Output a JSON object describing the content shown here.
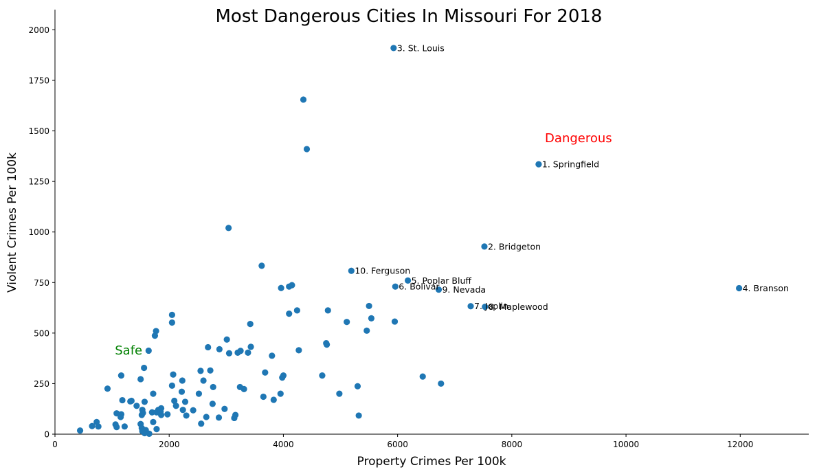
{
  "chart_data": {
    "type": "scatter",
    "title": "Most Dangerous Cities In Missouri For 2018",
    "xlabel": "Property Crimes Per 100k",
    "ylabel": "Violent Crimes Per 100k",
    "xlim": [
      0,
      13200
    ],
    "ylim": [
      0,
      2100
    ],
    "xticks": [
      0,
      2000,
      4000,
      6000,
      8000,
      10000,
      12000
    ],
    "yticks": [
      0,
      250,
      500,
      750,
      1000,
      1250,
      1500,
      1750,
      2000
    ],
    "grid": false,
    "marker_color": "#1f77b4",
    "labeled_points": [
      {
        "label": "3. St. Louis",
        "x": 5930,
        "y": 1910
      },
      {
        "label": "1. Springfield",
        "x": 8470,
        "y": 1335
      },
      {
        "label": "2. Bridgeton",
        "x": 7520,
        "y": 928
      },
      {
        "label": "10. Ferguson",
        "x": 5190,
        "y": 808
      },
      {
        "label": "5. Poplar Bluff",
        "x": 6180,
        "y": 760
      },
      {
        "label": "6. Bolivar",
        "x": 5960,
        "y": 730
      },
      {
        "label": "9. Nevada",
        "x": 6720,
        "y": 715
      },
      {
        "label": "4. Branson",
        "x": 11980,
        "y": 722
      },
      {
        "label": "7. Joplin",
        "x": 7280,
        "y": 633
      },
      {
        "label": "8. Maplewood",
        "x": 7530,
        "y": 630
      }
    ],
    "points": [
      [
        4350,
        1655
      ],
      [
        4410,
        1410
      ],
      [
        3040,
        1020
      ],
      [
        3620,
        833
      ],
      [
        3960,
        723
      ],
      [
        4100,
        730
      ],
      [
        4150,
        737
      ],
      [
        2050,
        590
      ],
      [
        2050,
        552
      ],
      [
        1770,
        510
      ],
      [
        1750,
        487
      ],
      [
        1640,
        413
      ],
      [
        3420,
        545
      ],
      [
        4100,
        596
      ],
      [
        4240,
        612
      ],
      [
        4780,
        612
      ],
      [
        5110,
        555
      ],
      [
        5460,
        512
      ],
      [
        5500,
        634
      ],
      [
        5540,
        573
      ],
      [
        5950,
        557
      ],
      [
        3010,
        468
      ],
      [
        3050,
        400
      ],
      [
        3200,
        403
      ],
      [
        3250,
        412
      ],
      [
        3380,
        403
      ],
      [
        3430,
        432
      ],
      [
        2680,
        430
      ],
      [
        2880,
        420
      ],
      [
        3800,
        388
      ],
      [
        4270,
        415
      ],
      [
        4750,
        450
      ],
      [
        4760,
        443
      ],
      [
        1160,
        290
      ],
      [
        1560,
        328
      ],
      [
        1500,
        272
      ],
      [
        920,
        225
      ],
      [
        2070,
        295
      ],
      [
        2230,
        265
      ],
      [
        2550,
        313
      ],
      [
        2600,
        265
      ],
      [
        2720,
        315
      ],
      [
        2050,
        240
      ],
      [
        2220,
        210
      ],
      [
        2770,
        233
      ],
      [
        3240,
        233
      ],
      [
        3310,
        223
      ],
      [
        3680,
        305
      ],
      [
        4000,
        290
      ],
      [
        3980,
        280
      ],
      [
        4680,
        290
      ],
      [
        5300,
        237
      ],
      [
        6440,
        285
      ],
      [
        6760,
        250
      ],
      [
        2520,
        200
      ],
      [
        1720,
        200
      ],
      [
        3650,
        185
      ],
      [
        3950,
        200
      ],
      [
        4980,
        200
      ],
      [
        1180,
        168
      ],
      [
        1320,
        162
      ],
      [
        1340,
        165
      ],
      [
        1570,
        160
      ],
      [
        2090,
        165
      ],
      [
        2280,
        160
      ],
      [
        2760,
        150
      ],
      [
        3830,
        170
      ],
      [
        1430,
        140
      ],
      [
        1530,
        120
      ],
      [
        1860,
        128
      ],
      [
        1810,
        120
      ],
      [
        1780,
        108
      ],
      [
        2120,
        140
      ],
      [
        2240,
        120
      ],
      [
        2420,
        118
      ],
      [
        1080,
        103
      ],
      [
        1160,
        98
      ],
      [
        1150,
        85
      ],
      [
        1520,
        95
      ],
      [
        1540,
        105
      ],
      [
        1700,
        108
      ],
      [
        1850,
        112
      ],
      [
        1860,
        95
      ],
      [
        1970,
        98
      ],
      [
        2300,
        92
      ],
      [
        2650,
        85
      ],
      [
        2870,
        82
      ],
      [
        2970,
        125
      ],
      [
        3160,
        95
      ],
      [
        3140,
        80
      ],
      [
        5320,
        92
      ],
      [
        730,
        60
      ],
      [
        650,
        40
      ],
      [
        760,
        38
      ],
      [
        1060,
        48
      ],
      [
        1080,
        35
      ],
      [
        1220,
        38
      ],
      [
        1500,
        50
      ],
      [
        1520,
        30
      ],
      [
        1530,
        15
      ],
      [
        1570,
        5
      ],
      [
        1590,
        20
      ],
      [
        1650,
        2
      ],
      [
        1720,
        60
      ],
      [
        1780,
        25
      ],
      [
        2560,
        52
      ],
      [
        440,
        18
      ]
    ],
    "annotations": [
      {
        "text": "Dangerous",
        "x": 8580,
        "y": 1445,
        "color": "#ff0000"
      },
      {
        "text": "Safe",
        "x": 1050,
        "y": 395,
        "color": "#008000"
      }
    ]
  }
}
